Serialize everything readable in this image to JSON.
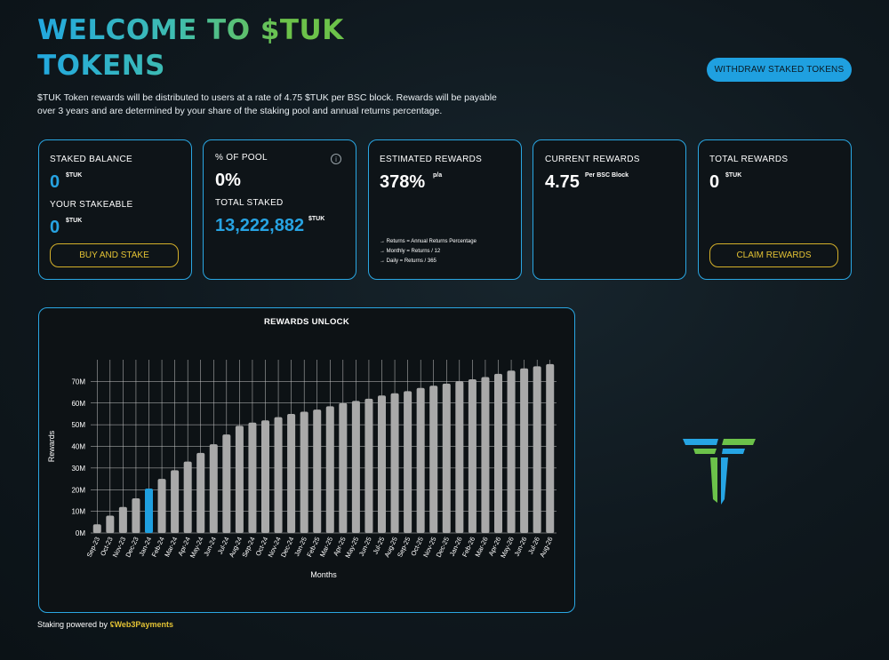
{
  "header": {
    "title_line1": "WELCOME TO $TUK",
    "title_line2": "TOKENS",
    "intro": "$TUK Token rewards will be distributed to users at a rate of 4.75 $TUK per BSC block. Rewards will be payable over 3 years and are determined by your share of the staking pool and annual returns percentage.",
    "withdraw_label": "WITHDRAW STAKED TOKENS"
  },
  "cards": {
    "staked": {
      "label": "STAKED BALANCE",
      "value": "0",
      "unit": "$TUK",
      "stakeable_label": "YOUR STAKEABLE",
      "stakeable_value": "0",
      "stakeable_unit": "$TUK",
      "button": "BUY AND STAKE"
    },
    "pool": {
      "label": "% OF POOL",
      "value": "0%",
      "info_icon": "i",
      "total_label": "TOTAL STAKED",
      "total_value": "13,222,882",
      "total_unit": "$TUK"
    },
    "estimated": {
      "label": "ESTIMATED REWARDS",
      "value": "378%",
      "unit": "p/a",
      "notes": [
        "Returns = Annual Returns Percentage",
        "Monthly = Returns / 12",
        "Daily = Returns / 365"
      ]
    },
    "current": {
      "label": "CURRENT REWARDS",
      "value": "4.75",
      "unit": "Per BSC Block"
    },
    "total": {
      "label": "TOTAL REWARDS",
      "value": "0",
      "unit": "$TUK",
      "button": "CLAIM REWARDS"
    }
  },
  "chart_data": {
    "type": "bar",
    "title": "REWARDS UNLOCK",
    "xlabel": "Months",
    "ylabel": "Rewards",
    "ylim": [
      0,
      80
    ],
    "yticks": [
      "0M",
      "10M",
      "20M",
      "30M",
      "40M",
      "50M",
      "60M",
      "70M"
    ],
    "highlight_index": 4,
    "colors": {
      "bar": "#a9a9a9",
      "highlight": "#1fa0e0",
      "grid": "#c8c8c8"
    },
    "categories": [
      "Sep-23",
      "Oct-23",
      "Nov-23",
      "Dec-23",
      "Jan-24",
      "Feb-24",
      "Mar-24",
      "Apr-24",
      "May-24",
      "Jun-24",
      "Jul-24",
      "Aug-24",
      "Sep-24",
      "Oct-24",
      "Nov-24",
      "Dec-24",
      "Jan-25",
      "Feb-25",
      "Mar-25",
      "Apr-25",
      "May-25",
      "Jun-25",
      "Jul-25",
      "Aug-25",
      "Sep-25",
      "Oct-25",
      "Nov-25",
      "Dec-25",
      "Jan-26",
      "Feb-26",
      "Mar-26",
      "Apr-26",
      "May-26",
      "Jun-26",
      "Jul-26",
      "Aug-26"
    ],
    "values": [
      4,
      8,
      12,
      16,
      20.5,
      25,
      29,
      33,
      37,
      41,
      45.5,
      49.5,
      51,
      52,
      53.5,
      55,
      56,
      57,
      58.5,
      60,
      61,
      62,
      63.5,
      64.5,
      65.5,
      67,
      68,
      69,
      70,
      71,
      72,
      73.5,
      75,
      76,
      77,
      78
    ]
  },
  "footer": {
    "text": "Staking powered by",
    "brand": "Web3Payments"
  }
}
